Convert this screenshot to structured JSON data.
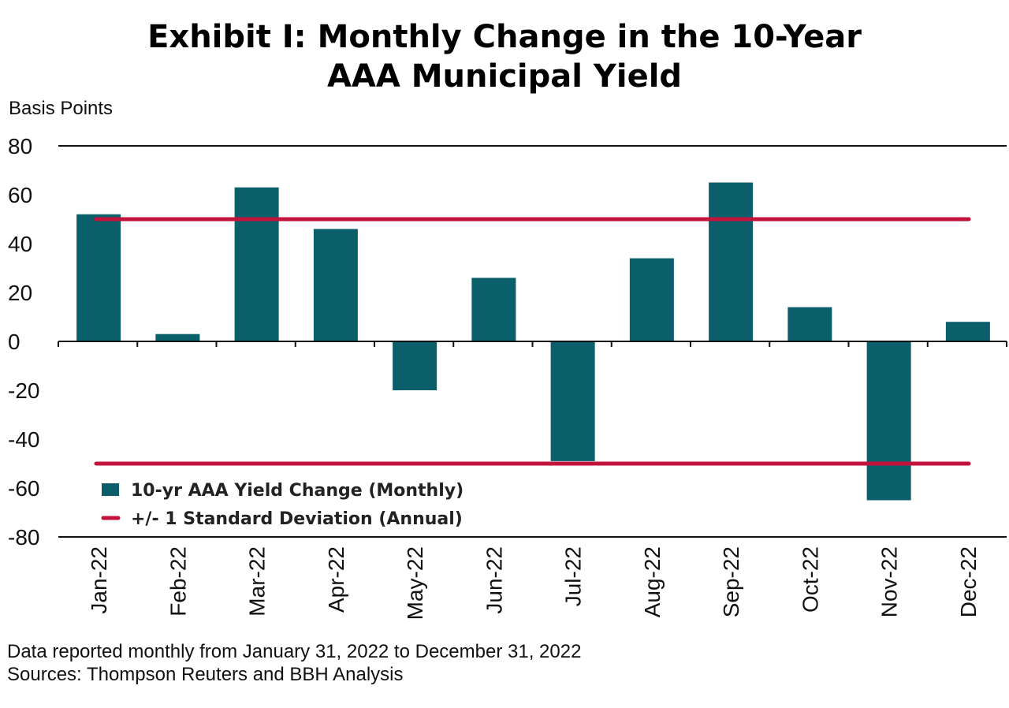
{
  "chart_data": {
    "type": "bar",
    "title_lines": [
      "Exhibit I: Monthly Change in the 10-Year",
      "AAA Municipal Yield"
    ],
    "ylabel": "Basis Points",
    "xlabel": "",
    "categories": [
      "Jan-22",
      "Feb-22",
      "Mar-22",
      "Apr-22",
      "May-22",
      "Jun-22",
      "Jul-22",
      "Aug-22",
      "Sep-22",
      "Oct-22",
      "Nov-22",
      "Dec-22"
    ],
    "series": [
      {
        "name": "10-yr AAA Yield Change (Monthly)",
        "values": [
          52,
          3,
          63,
          46,
          -20,
          26,
          -49,
          34,
          65,
          14,
          -65,
          8
        ],
        "color": "#0b5f6b"
      }
    ],
    "reference_lines": {
      "name": "+/- 1 Standard Deviation (Annual)",
      "values": [
        50,
        -50
      ],
      "color": "#c1133b"
    },
    "ylim": [
      -80,
      80
    ],
    "yticks": [
      80,
      60,
      40,
      20,
      0,
      -20,
      -40,
      -60,
      -80
    ],
    "legend_position": "bottom-left",
    "footnotes": [
      "Data reported monthly from January 31, 2022 to December 31, 2022",
      "Sources: Thompson Reuters and BBH Analysis"
    ]
  }
}
